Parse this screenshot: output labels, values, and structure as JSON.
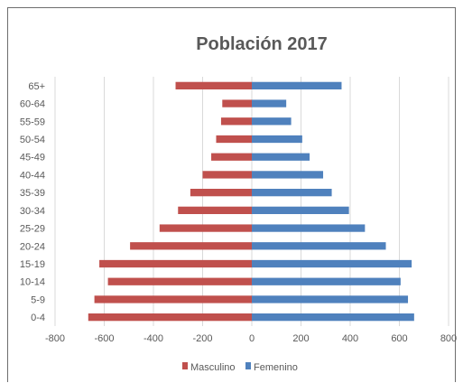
{
  "chart_data": {
    "type": "bar",
    "orientation": "horizontal",
    "title": "Población 2017",
    "categories": [
      "65+",
      "60-64",
      "55-59",
      "50-54",
      "45-49",
      "40-44",
      "35-39",
      "30-34",
      "25-29",
      "20-24",
      "15-19",
      "10-14",
      "5-9",
      "0-4"
    ],
    "series": [
      {
        "name": "Masculino",
        "color": "#c0504d",
        "values": [
          -310,
          -120,
          -125,
          -145,
          -165,
          -200,
          -250,
          -300,
          -375,
          -495,
          -620,
          -585,
          -640,
          -665
        ]
      },
      {
        "name": "Femenino",
        "color": "#4f81bd",
        "values": [
          365,
          140,
          160,
          205,
          235,
          290,
          325,
          395,
          460,
          545,
          650,
          605,
          635,
          660
        ]
      }
    ],
    "x_ticks": [
      "-800",
      "-600",
      "-400",
      "-200",
      "0",
      "200",
      "400",
      "600",
      "800"
    ],
    "xlim": [
      -800,
      800
    ],
    "grid": "vertical",
    "legend": "bottom"
  }
}
